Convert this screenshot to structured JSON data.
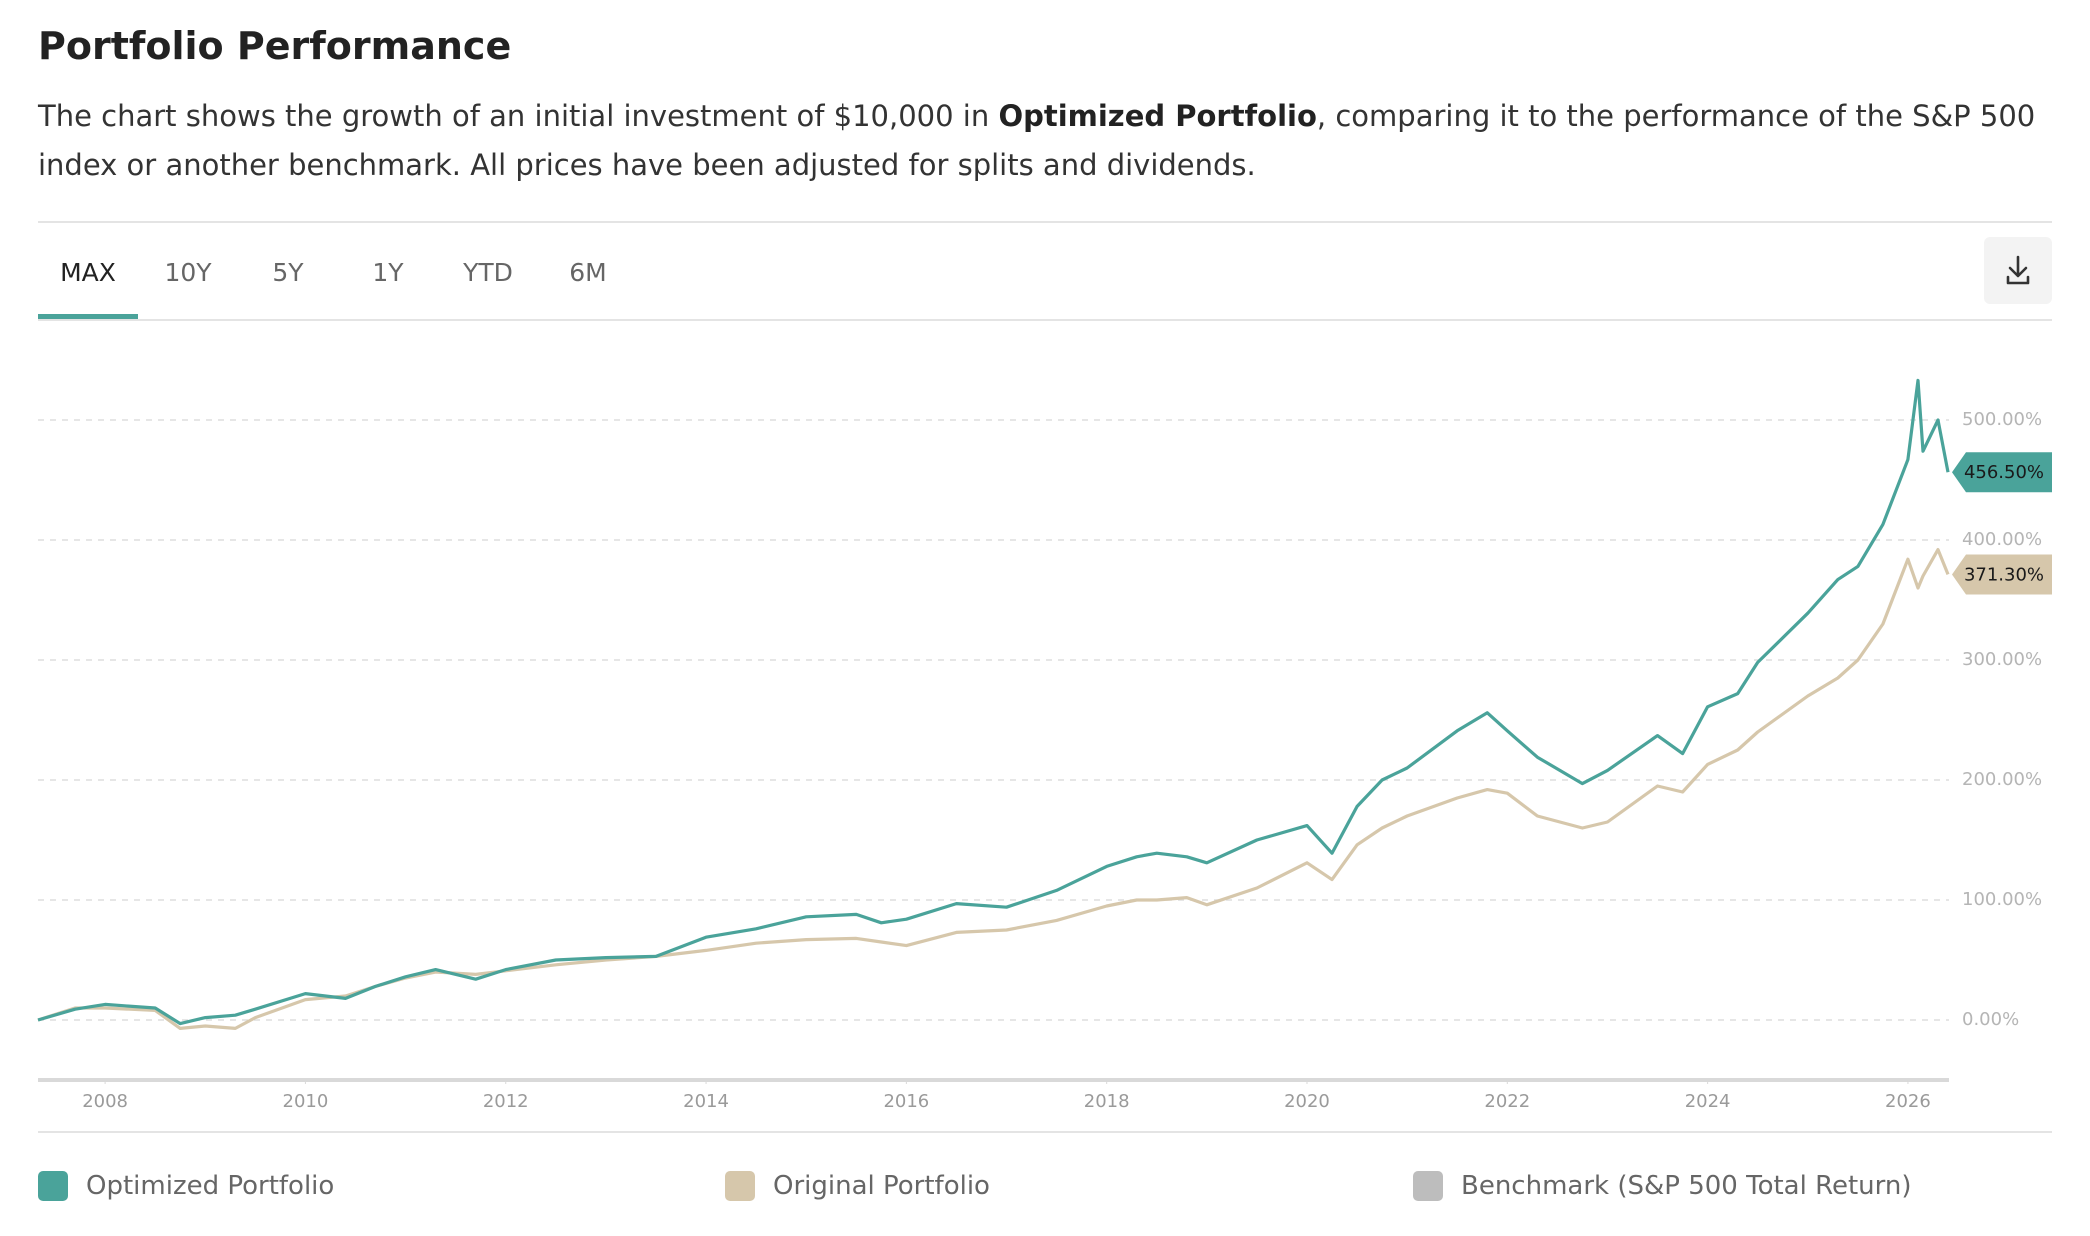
{
  "header": {
    "title": "Portfolio Performance",
    "description": {
      "before": "The chart shows the growth of an initial investment of $10,000 in ",
      "bold": "Optimized Portfolio",
      "after": ", comparing it to the performance of the S&P 500 index or another benchmark. All prices have been adjusted for splits and dividends."
    }
  },
  "tabs": [
    "MAX",
    "10Y",
    "5Y",
    "1Y",
    "YTD",
    "6M"
  ],
  "chart_data": {
    "type": "line",
    "x": [
      2007.33,
      2007.7,
      2008,
      2008.5,
      2008.75,
      2009,
      2009.3,
      2009.5,
      2010,
      2010.4,
      2010.7,
      2011,
      2011.3,
      2011.7,
      2012,
      2012.5,
      2013,
      2013.5,
      2014,
      2014.5,
      2015,
      2015.5,
      2015.75,
      2016,
      2016.5,
      2017,
      2017.5,
      2018,
      2018.3,
      2018.5,
      2018.8,
      2019,
      2019.5,
      2020,
      2020.25,
      2020.5,
      2020.75,
      2021,
      2021.5,
      2021.8,
      2022,
      2022.3,
      2022.75,
      2023,
      2023.5,
      2023.75,
      2024,
      2024.3,
      2024.5,
      2025,
      2025.3,
      2025.5,
      2025.75,
      2026,
      2026.1,
      2026.15,
      2026.3,
      2026.4
    ],
    "series": [
      {
        "name": "Optimized Portfolio",
        "color": "#4aa39a",
        "end_label": "456.50%",
        "values": [
          0,
          9,
          13,
          10,
          -3,
          2,
          4,
          9,
          22,
          18,
          28,
          36,
          42,
          34,
          42,
          50,
          52,
          53,
          69,
          76,
          86,
          88,
          81,
          84,
          97,
          94,
          108,
          128,
          136,
          139,
          136,
          131,
          150,
          162,
          139,
          178,
          200,
          210,
          241,
          256,
          241,
          219,
          197,
          208,
          237,
          222,
          261,
          272,
          298,
          339,
          367,
          378,
          413,
          467,
          533,
          474,
          500,
          456.5
        ]
      },
      {
        "name": "Original Portfolio",
        "color": "#d6c7ab",
        "end_label": "371.30%",
        "values": [
          0,
          10,
          10,
          8,
          -7,
          -5,
          -7,
          2,
          17,
          20,
          28,
          35,
          40,
          38,
          41,
          46,
          50,
          53,
          58,
          64,
          67,
          68,
          65,
          62,
          73,
          75,
          83,
          95,
          100,
          100,
          102,
          96,
          110,
          131,
          117,
          146,
          160,
          170,
          185,
          192,
          189,
          170,
          160,
          165,
          195,
          190,
          213,
          225,
          240,
          270,
          285,
          300,
          330,
          384,
          360,
          370,
          392,
          371.3
        ]
      },
      {
        "name": "Benchmark (S&P 500 Total Return)",
        "color": "#bdbdbd",
        "values": [
          null,
          null,
          null,
          null,
          null,
          null,
          null,
          null,
          null,
          null,
          null,
          null,
          null,
          null,
          null,
          null,
          null,
          null,
          null,
          null,
          null,
          null,
          null,
          null,
          null,
          null,
          null,
          null,
          null,
          null,
          null,
          null,
          null,
          null,
          null,
          null,
          null,
          null,
          null,
          null,
          null,
          null,
          null,
          null,
          null,
          null,
          null,
          null,
          null,
          null,
          null,
          null,
          null,
          null,
          null,
          null,
          null,
          null
        ]
      }
    ],
    "xlim": [
      2007.33,
      2026.41
    ],
    "xticks": [
      2008,
      2010,
      2012,
      2014,
      2016,
      2018,
      2020,
      2022,
      2024,
      2026
    ],
    "ylim": [
      -50,
      550
    ],
    "yticks": [
      {
        "value": 0,
        "label": "0.00%"
      },
      {
        "value": 100,
        "label": "100.00%"
      },
      {
        "value": 200,
        "label": "200.00%"
      },
      {
        "value": 300,
        "label": "300.00%"
      },
      {
        "value": 400,
        "label": "400.00%"
      },
      {
        "value": 500,
        "label": "500.00%"
      }
    ],
    "grid": true
  }
}
